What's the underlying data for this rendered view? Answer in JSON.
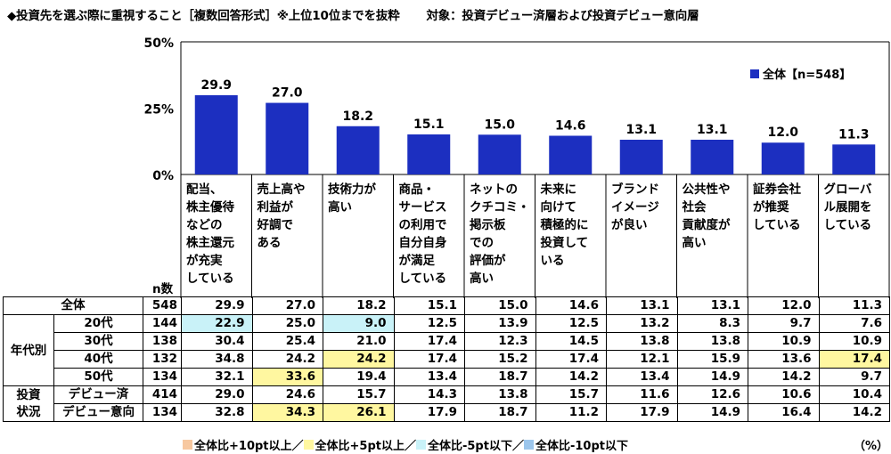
{
  "title": {
    "main": "◆投資先を選ぶ際に重視すること［複数回答形式］※上位10位までを抜粋",
    "target": "対象：投資デビュー済層および投資デビュー意向層"
  },
  "legend_top": "全体【n=548】",
  "n_header": "n数",
  "unit": "（%）",
  "legend_bottom": [
    {
      "label": "全体比+10pt以上",
      "color": "#f7c8a0",
      "sep": "／"
    },
    {
      "label": "全体比+5pt以上",
      "color": "#fff7a0",
      "sep": "／"
    },
    {
      "label": "全体比-5pt以下",
      "color": "#c9f2f8",
      "sep": "／"
    },
    {
      "label": "全体比-10pt以下",
      "color": "#9cc6ec",
      "sep": ""
    }
  ],
  "colors": {
    "bar": "#1c2fc0",
    "highlight_yellow": "#fff7a0",
    "highlight_cyan": "#c9f2f8"
  },
  "chart_data": {
    "type": "bar",
    "ylim": [
      0,
      50
    ],
    "yticks": [
      "0%",
      "25%",
      "50%"
    ],
    "categories": [
      [
        "配当、",
        "株主優待",
        "などの",
        "株主還元",
        "が充実",
        "している"
      ],
      [
        "売上高や",
        "利益が",
        "好調で",
        "ある"
      ],
      [
        "技術力が",
        "高い"
      ],
      [
        "商品・",
        "サービス",
        "の利用で",
        "自分自身",
        "が満足",
        "している"
      ],
      [
        "ネットの",
        "クチコミ・",
        "掲示板",
        "での",
        "評価が",
        "高い"
      ],
      [
        "未来に",
        "向けて",
        "積極的に",
        "投資して",
        "いる"
      ],
      [
        "ブランド",
        "イメージ",
        "が良い"
      ],
      [
        "公共性や",
        "社会",
        "貢献度が",
        "高い"
      ],
      [
        "証券会社",
        "が推奨",
        "している"
      ],
      [
        "グローバ",
        "ル展開を",
        "している"
      ]
    ],
    "series": [
      {
        "name": "全体【n=548】",
        "values": [
          29.9,
          27.0,
          18.2,
          15.1,
          15.0,
          14.6,
          13.1,
          13.1,
          12.0,
          11.3
        ]
      }
    ]
  },
  "table": {
    "rows": [
      {
        "group": "",
        "label": "全体",
        "n": "548",
        "values": [
          "29.9",
          "27.0",
          "18.2",
          "15.1",
          "15.0",
          "14.6",
          "13.1",
          "13.1",
          "12.0",
          "11.3"
        ],
        "hl": [
          "",
          "",
          "",
          "",
          "",
          "",
          "",
          "",
          "",
          ""
        ]
      },
      {
        "group": "年代別",
        "label": "20代",
        "n": "144",
        "values": [
          "22.9",
          "25.0",
          "9.0",
          "12.5",
          "13.9",
          "12.5",
          "13.2",
          "8.3",
          "9.7",
          "7.6"
        ],
        "hl": [
          "c",
          "",
          "c",
          "",
          "",
          "",
          "",
          "",
          "",
          ""
        ]
      },
      {
        "group": "年代別",
        "label": "30代",
        "n": "138",
        "values": [
          "30.4",
          "25.4",
          "21.0",
          "17.4",
          "12.3",
          "14.5",
          "13.8",
          "13.8",
          "10.9",
          "10.9"
        ],
        "hl": [
          "",
          "",
          "",
          "",
          "",
          "",
          "",
          "",
          "",
          ""
        ]
      },
      {
        "group": "年代別",
        "label": "40代",
        "n": "132",
        "values": [
          "34.8",
          "24.2",
          "24.2",
          "17.4",
          "15.2",
          "17.4",
          "12.1",
          "15.9",
          "13.6",
          "17.4"
        ],
        "hl": [
          "",
          "",
          "y",
          "",
          "",
          "",
          "",
          "",
          "",
          "y"
        ]
      },
      {
        "group": "年代別",
        "label": "50代",
        "n": "134",
        "values": [
          "32.1",
          "33.6",
          "19.4",
          "13.4",
          "18.7",
          "14.2",
          "13.4",
          "14.9",
          "14.2",
          "9.7"
        ],
        "hl": [
          "",
          "y",
          "",
          "",
          "",
          "",
          "",
          "",
          "",
          ""
        ]
      },
      {
        "group": "投資状況",
        "label": "デビュー済",
        "n": "414",
        "values": [
          "29.0",
          "24.6",
          "15.7",
          "14.3",
          "13.8",
          "15.7",
          "11.6",
          "12.6",
          "10.6",
          "10.4"
        ],
        "hl": [
          "",
          "",
          "",
          "",
          "",
          "",
          "",
          "",
          "",
          ""
        ]
      },
      {
        "group": "投資状況",
        "label": "デビュー意向",
        "n": "134",
        "values": [
          "32.8",
          "34.3",
          "26.1",
          "17.9",
          "18.7",
          "11.2",
          "17.9",
          "14.9",
          "16.4",
          "14.2"
        ],
        "hl": [
          "",
          "y",
          "y",
          "",
          "",
          "",
          "",
          "",
          "",
          ""
        ]
      }
    ],
    "groups": {
      "age": [
        "年代別"
      ],
      "status": [
        "投資",
        "状況"
      ]
    }
  }
}
